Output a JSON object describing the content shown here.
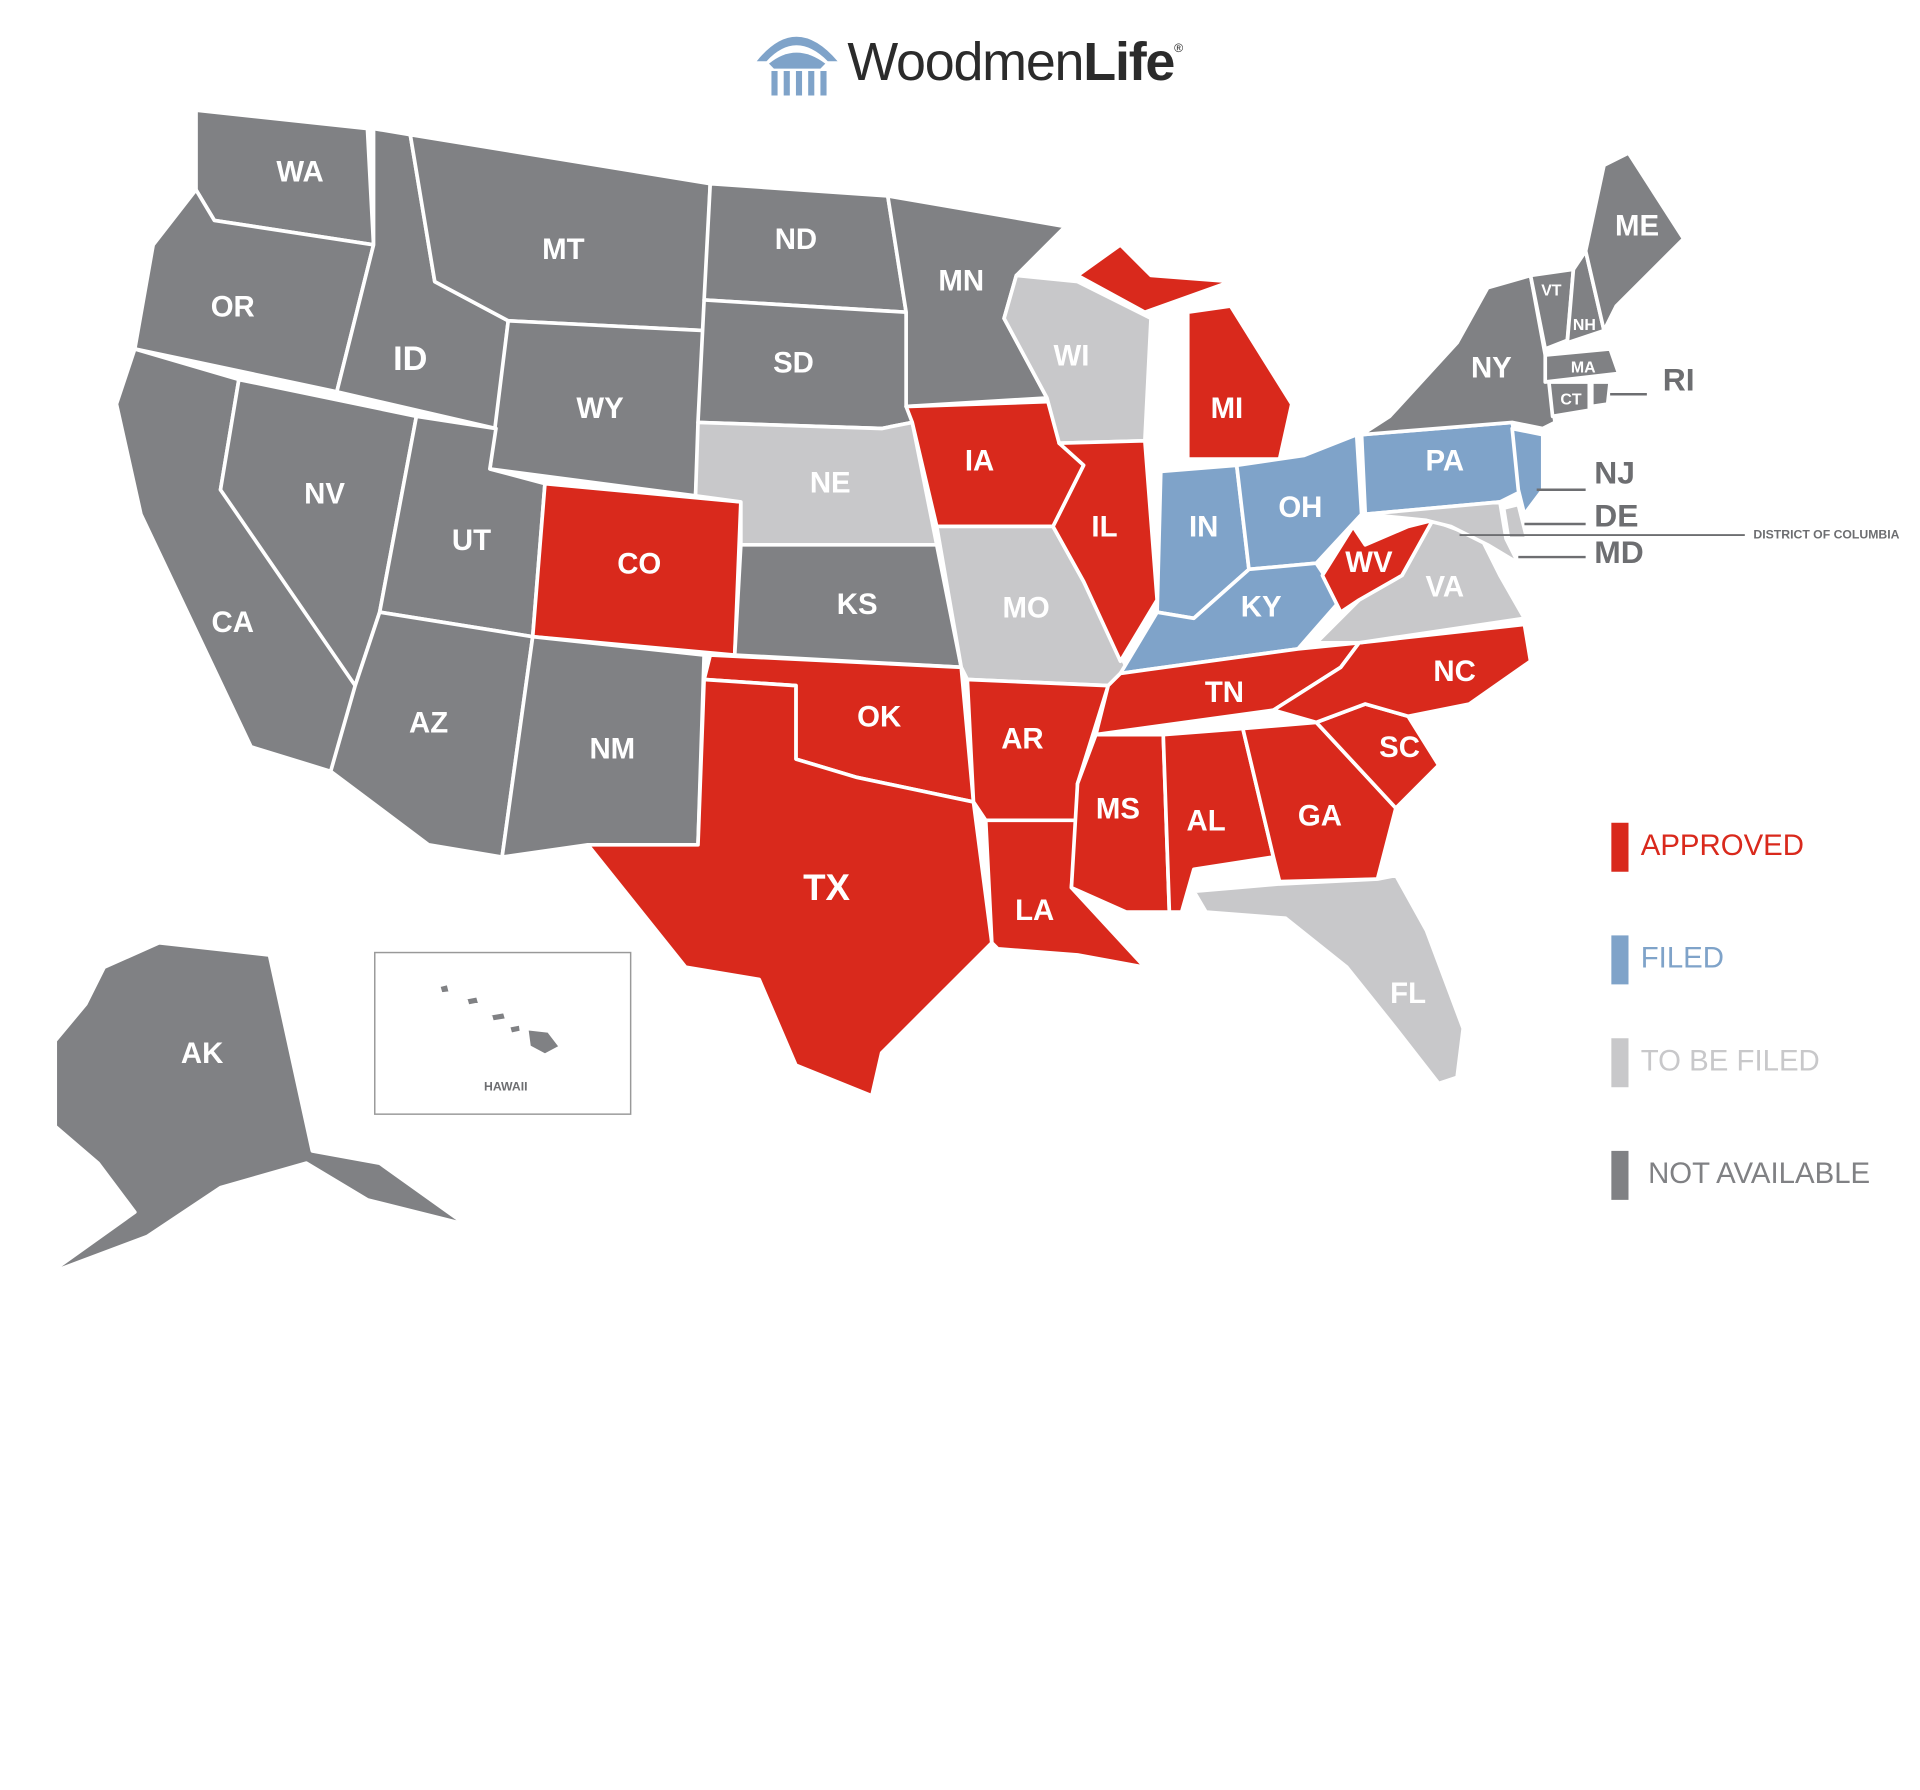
{
  "header": {
    "brand_light": "Woodmen",
    "brand_bold": "Life",
    "registered": "®"
  },
  "legend": [
    {
      "label": "APPROVED",
      "color": "#d9291c"
    },
    {
      "label": "FILED",
      "color": "#7fa3c9"
    },
    {
      "label": "TO BE FILED",
      "color": "#c8c8ca"
    },
    {
      "label": "NOT AVAILABLE",
      "color": "#808184"
    }
  ],
  "states": [
    {
      "label": "WA",
      "status": 3
    },
    {
      "label": "OR",
      "status": 3
    },
    {
      "label": "CA",
      "status": 3
    },
    {
      "label": "NV",
      "status": 3
    },
    {
      "label": "ID",
      "status": 3
    },
    {
      "label": "MT",
      "status": 3
    },
    {
      "label": "WY",
      "status": 3
    },
    {
      "label": "UT",
      "status": 3
    },
    {
      "label": "AZ",
      "status": 3
    },
    {
      "label": "CO",
      "status": 0
    },
    {
      "label": "NM",
      "status": 3
    },
    {
      "label": "ND",
      "status": 3
    },
    {
      "label": "SD",
      "status": 3
    },
    {
      "label": "NE",
      "status": 2
    },
    {
      "label": "KS",
      "status": 3
    },
    {
      "label": "OK",
      "status": 0
    },
    {
      "label": "TX",
      "status": 0
    },
    {
      "label": "MN",
      "status": 3
    },
    {
      "label": "IA",
      "status": 0
    },
    {
      "label": "MO",
      "status": 2
    },
    {
      "label": "AR",
      "status": 0
    },
    {
      "label": "LA",
      "status": 0
    },
    {
      "label": "WI",
      "status": 2
    },
    {
      "label": "IL",
      "status": 0
    },
    {
      "label": "MI",
      "status": 0
    },
    {
      "label": "IN",
      "status": 1
    },
    {
      "label": "OH",
      "status": 1
    },
    {
      "label": "KY",
      "status": 1
    },
    {
      "label": "TN",
      "status": 0
    },
    {
      "label": "MS",
      "status": 0
    },
    {
      "label": "AL",
      "status": 0
    },
    {
      "label": "GA",
      "status": 0
    },
    {
      "label": "FL",
      "status": 2
    },
    {
      "label": "SC",
      "status": 0
    },
    {
      "label": "NC",
      "status": 0
    },
    {
      "label": "VA",
      "status": 2
    },
    {
      "label": "WV",
      "status": 0
    },
    {
      "label": "PA",
      "status": 1
    },
    {
      "label": "NJ",
      "status": 1
    },
    {
      "label": "DE",
      "status": 2
    },
    {
      "label": "MD",
      "status": 2
    },
    {
      "label": "NY",
      "status": 3
    },
    {
      "label": "VT",
      "status": 3
    },
    {
      "label": "NH",
      "status": 3
    },
    {
      "label": "ME",
      "status": 3
    },
    {
      "label": "MA",
      "status": 3
    },
    {
      "label": "CT",
      "status": 3
    },
    {
      "label": "RI",
      "status": 3
    },
    {
      "label": "AK",
      "status": 3
    },
    {
      "label": "HAWAII",
      "status": 3
    }
  ],
  "district_label": "DISTRICT OF COLUMBIA"
}
